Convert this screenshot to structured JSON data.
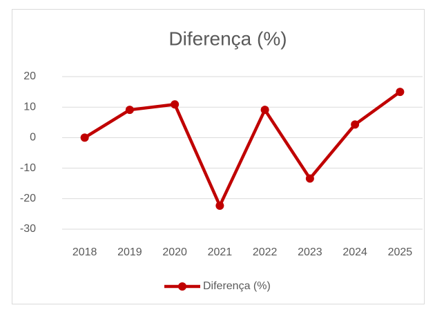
{
  "chart_data": {
    "type": "line",
    "title": "Diferença (%)",
    "categories": [
      "2018",
      "2019",
      "2020",
      "2021",
      "2022",
      "2023",
      "2024",
      "2025"
    ],
    "series": [
      {
        "name": "Diferença (%)",
        "color": "#c00000",
        "values": [
          0,
          9.1,
          10.9,
          -22.3,
          9.1,
          -13.4,
          4.3,
          15.0
        ]
      }
    ],
    "ylim": [
      -30,
      20
    ],
    "yticks": [
      -30,
      -20,
      -10,
      0,
      10,
      20
    ],
    "grid": true,
    "legend": "bottom"
  }
}
